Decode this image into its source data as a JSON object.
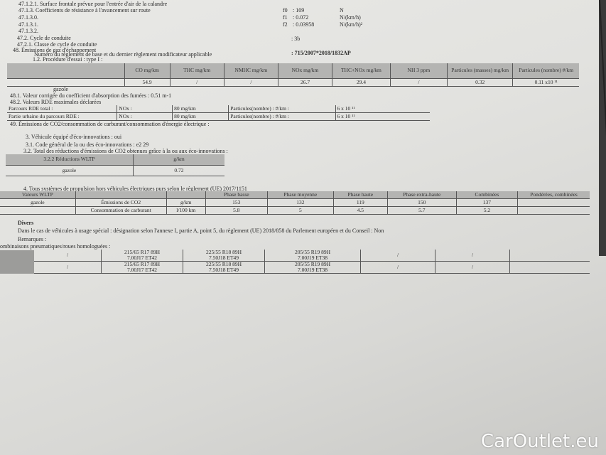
{
  "lines": {
    "l47121": "47.1.2.1. Surface frontale prévue pour l'entrée d'air de la calandre",
    "l4713": "47.1.3.   Coefficients de résistance à l'avancement sur route",
    "l47130": "47.1.3.0.",
    "l47131": "47.1.3.1.",
    "l47132": "47.1.3.2.",
    "l472": "47.2.      Cycle de conduite",
    "l4721": "47.2.1.   Classe de cycle de conduite",
    "l48": "48.        Émissions de gaz d'échappement",
    "l48num": "Numéro du règlement de base et du dernier règlement modificateur applicable",
    "l12": "1.2. Procédure d'essai : type I :",
    "gazole": "gazole",
    "l481": "48.1.     Valeur corrigée du coefficient d'absorption des fumées : 0.51 m-1",
    "l482": "48.2.     Valeurs RDE maximales déclarées",
    "l49": "49.        Émissions de CO2/consommation de carburant/consommation d'énergie électrique :",
    "l3": "3. Véhicule équipé d'éco-innovations : oui",
    "l31": "3.1. Code général de la ou des éco-innovations : e2 29",
    "l32": "3.2. Total des réductions d'émissions de CO2 obtenues grâce à la ou aux éco-innovations :",
    "l4": "4. Tous systèmes de propulsion hors véhicules électriques purs selon le règlement (UE) 2017/1151",
    "divers": "Divers",
    "special": "Dans le cas de véhicules à usage spécial : désignation selon l'annexe I, partie A, point 5, du règlement (UE) 2018/858 du Parlement européen et du Conseil : Non",
    "remarques": "Remarques :",
    "combi": "ombinaisons pneumatiques/roues homologuées :"
  },
  "coeffs": [
    {
      "k": "f0",
      "v": ": 109",
      "u": "N"
    },
    {
      "k": "f1",
      "v": ": 0.072",
      "u": "N/(km/h)"
    },
    {
      "k": "f2",
      "v": ": 0.03958",
      "u": "N/(km/h)²"
    }
  ],
  "cycle": ": 3b",
  "reglement": ": 715/2007*2018/1832AP",
  "emissions": {
    "headers": [
      "",
      "CO mg/km",
      "THC mg/km",
      "NMHC mg/km",
      "NOx mg/km",
      "THC+NOx mg/km",
      "NH 3 ppm",
      "Particules (masses) mg/km",
      "Particules (nombre) #/km"
    ],
    "values": [
      "",
      "54.9",
      "/",
      "/",
      "26.7",
      "29.4",
      "/",
      "0.32",
      "0.11 x10 ¹¹"
    ]
  },
  "rde": [
    [
      "Parcours RDE total :",
      "NOx :",
      "80 mg/km",
      "Particules(nombre) : #/km :",
      "6 x 10 ¹¹"
    ],
    [
      "Partie urbaine du parcours RDE      :",
      "NOx :",
      "80 mg/km",
      "Particules(nombre) : #/km :",
      "6 x 10 ¹¹"
    ]
  ],
  "eco": {
    "headers": [
      "3.2.2 Réductions WLTP",
      "g/km"
    ],
    "values": [
      "gazole",
      "0.72"
    ]
  },
  "wltp": {
    "headers": [
      "Valeurs WLTP",
      "",
      "",
      "Phase basse",
      "Phase moyenne",
      "Phase haute",
      "Phase extra-haute",
      "Combinées",
      "Pondérées, combinées"
    ],
    "rows": [
      [
        "gazole",
        "Émissions de CO2",
        "g/km",
        "153",
        "132",
        "119",
        "150",
        "137",
        ""
      ],
      [
        "",
        "Consommation de carburant",
        "l/100 km",
        "5.8",
        "5",
        "4.5",
        "5.7",
        "5.2",
        ""
      ]
    ]
  },
  "tyres": [
    [
      "/",
      "215/65 R17 89H",
      "7.00J17 ET42",
      "225/55 R18 89H",
      "7.50J18 ET49",
      "205/55 R19 89H",
      "7.00J19 ET38",
      "/",
      "/"
    ],
    [
      "/",
      "215/65 R17 89H",
      "7.00J17 ET42",
      "225/55 R18 89H",
      "7.50J18 ET49",
      "205/55 R19 89H",
      "7.00J19 ET38",
      "/",
      "/"
    ]
  ],
  "watermark": "CarOutlet.eu"
}
